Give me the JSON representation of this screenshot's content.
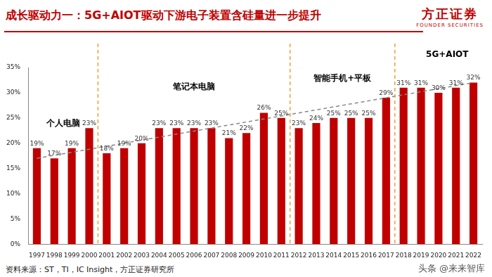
{
  "chart_data": {
    "type": "bar",
    "title": "成长驱动力一：5G+AIOT驱动下游电子装置含硅量进一步提升",
    "categories": [
      "1997",
      "1998",
      "1999",
      "2000",
      "2001",
      "2002",
      "2003",
      "2004",
      "2005",
      "2006",
      "2007",
      "2008",
      "2009",
      "2010",
      "2011",
      "2012",
      "2013",
      "2014",
      "2015",
      "2016",
      "2017",
      "2018",
      "2019",
      "2020",
      "2021",
      "2022"
    ],
    "values": [
      19,
      17,
      19,
      23,
      18,
      19,
      20,
      23,
      23,
      23,
      23,
      21,
      22,
      26,
      25,
      23,
      24,
      25,
      25,
      25,
      29,
      31,
      31,
      30,
      31,
      32
    ],
    "value_labels": [
      "19%",
      "17%",
      "19%",
      "23%",
      "18%",
      "19%",
      "20%",
      "23%",
      "23%",
      "23%",
      "23%",
      "21%",
      "22%",
      "26%",
      "25%",
      "23%",
      "24%",
      "25%",
      "25%",
      "25%",
      "29%",
      "31%",
      "31%",
      "30%",
      "31%",
      "32%"
    ],
    "color": "#c00000",
    "ylim": [
      0,
      35
    ],
    "yticks": [
      {
        "value": 0,
        "label": "0%"
      },
      {
        "value": 5,
        "label": "5%"
      },
      {
        "value": 10,
        "label": "10%"
      },
      {
        "value": 15,
        "label": "15%"
      },
      {
        "value": 20,
        "label": "20%"
      },
      {
        "value": 25,
        "label": "25%"
      },
      {
        "value": 30,
        "label": "30%"
      },
      {
        "value": 35,
        "label": "35%"
      }
    ],
    "grid": false,
    "data_labels": true,
    "trend_values": [
      17,
      32
    ],
    "dividers": [
      "2000",
      "2011",
      "2017"
    ],
    "annotations": [
      "个人电脑",
      "笔记本电脑",
      "智能手机+平板",
      "5G+AIOT"
    ],
    "source": "资料来源：ST，TI，IC Insight，方正证券研究所",
    "logo": [
      "方正证券",
      "FOUNDER SECURITIES"
    ],
    "watermark": "头条 @来来智库"
  }
}
